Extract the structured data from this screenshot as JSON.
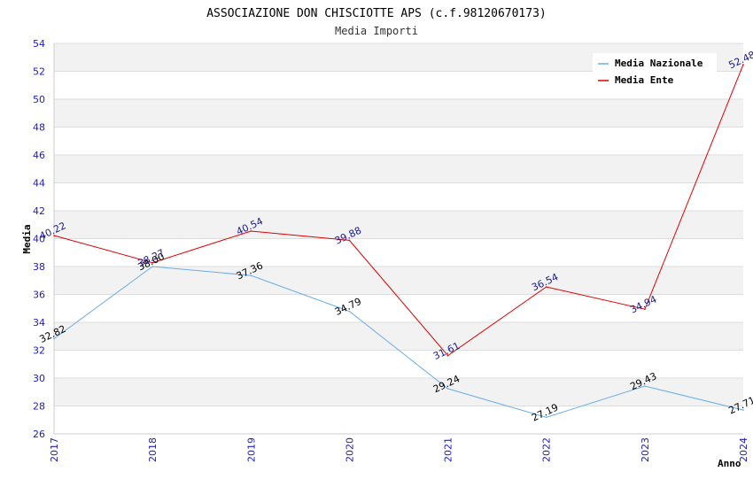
{
  "chart_data": {
    "type": "line",
    "title": "ASSOCIAZIONE DON CHISCIOTTE APS (c.f.98120670173)",
    "subtitle": "Media Importi",
    "xlabel": "Anno",
    "ylabel": "Media",
    "categories": [
      "2017",
      "2018",
      "2019",
      "2020",
      "2021",
      "2022",
      "2023",
      "2024"
    ],
    "ylim": [
      26,
      54
    ],
    "yticks": [
      26,
      28,
      30,
      32,
      34,
      36,
      38,
      40,
      42,
      44,
      46,
      48,
      50,
      52,
      54
    ],
    "grid": true,
    "legend_position": "top-right",
    "series": [
      {
        "name": "Media Nazionale",
        "color": "#6aaee8",
        "values": [
          32.82,
          38.0,
          37.36,
          34.79,
          29.24,
          27.19,
          29.43,
          27.71
        ],
        "labels": [
          "32.82",
          "38.00",
          "37.36",
          "34.79",
          "29.24",
          "27.19",
          "29.43",
          "27.71"
        ]
      },
      {
        "name": "Media Ente",
        "color": "#e00000",
        "values": [
          40.22,
          38.27,
          40.54,
          39.88,
          31.61,
          36.54,
          34.94,
          52.48
        ],
        "labels": [
          "40.22",
          "38.27",
          "40.54",
          "39.88",
          "31.61",
          "36.54",
          "34.94",
          "52.48"
        ]
      }
    ]
  }
}
